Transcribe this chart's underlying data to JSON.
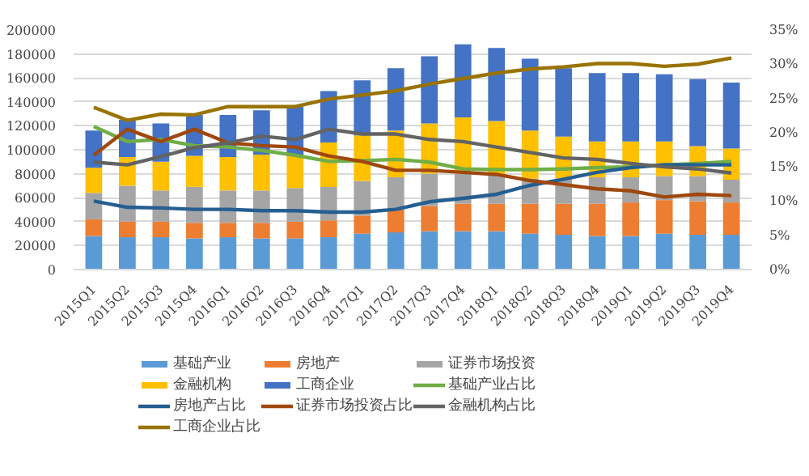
{
  "chart_data": {
    "type": "bar",
    "stacked": true,
    "grid": "y",
    "legend": "bottom",
    "line_style": "solid",
    "marker": "none",
    "categories": [
      "2015Q1",
      "2015Q2",
      "2015Q3",
      "2015Q4",
      "2016Q1",
      "2016Q2",
      "2016Q3",
      "2016Q4",
      "2017Q1",
      "2017Q2",
      "2017Q3",
      "2017Q4",
      "2018Q1",
      "2018Q2",
      "2018Q3",
      "2018Q4",
      "2019Q1",
      "2019Q2",
      "2019Q3",
      "2019Q4"
    ],
    "ylim": [
      0,
      200000
    ],
    "yticks": [
      0,
      20000,
      40000,
      60000,
      80000,
      100000,
      120000,
      140000,
      160000,
      180000,
      200000
    ],
    "y2lim": [
      0,
      35
    ],
    "y2ticks": [
      {
        "value": 0,
        "label": "0%"
      },
      {
        "value": 5,
        "label": "5%"
      },
      {
        "value": 10,
        "label": "10%"
      },
      {
        "value": 15,
        "label": "15%"
      },
      {
        "value": 20,
        "label": "20%"
      },
      {
        "value": 25,
        "label": "25%"
      },
      {
        "value": 30,
        "label": "30%"
      },
      {
        "value": 35,
        "label": "35%"
      }
    ],
    "series": [
      {
        "name": "基础产业",
        "color": "#5b9bd5",
        "values": [
          28000,
          27000,
          27000,
          26000,
          27000,
          26000,
          26000,
          27000,
          30000,
          31000,
          32000,
          32000,
          32000,
          30000,
          29000,
          28000,
          28000,
          30000,
          29000,
          29000
        ]
      },
      {
        "name": "房地产",
        "color": "#ed7d31",
        "values": [
          14000,
          13000,
          13000,
          13000,
          12000,
          13000,
          14000,
          14000,
          15000,
          19000,
          21000,
          23000,
          23000,
          25000,
          26000,
          27000,
          28000,
          28000,
          28000,
          27000
        ]
      },
      {
        "name": "证券市场投资",
        "color": "#a5a5a5",
        "values": [
          22000,
          30000,
          26000,
          30000,
          27000,
          27000,
          28000,
          28000,
          29000,
          27000,
          27000,
          25000,
          24000,
          21000,
          21000,
          22000,
          21000,
          20000,
          21000,
          19000
        ]
      },
      {
        "name": "金融机构",
        "color": "#ffc000",
        "values": [
          21000,
          24000,
          24000,
          26000,
          28000,
          30000,
          27000,
          37000,
          38000,
          39000,
          42000,
          47000,
          45000,
          40000,
          35000,
          30000,
          30000,
          29000,
          25000,
          26000
        ]
      },
      {
        "name": "工商企业",
        "color": "#4472c4",
        "values": [
          31000,
          31000,
          32000,
          34000,
          35000,
          37000,
          41000,
          43000,
          46000,
          52000,
          56000,
          61000,
          61000,
          60000,
          57000,
          57000,
          57000,
          56000,
          56000,
          55000
        ]
      },
      {
        "name": "基础产业占比",
        "color": "#70ad47",
        "type": "line",
        "axis": "y2",
        "values": [
          20.9,
          18.7,
          19.0,
          18.1,
          17.9,
          17.4,
          16.7,
          15.8,
          15.9,
          16.1,
          15.7,
          14.7,
          14.6,
          14.6,
          14.7,
          14.9,
          15.0,
          15.3,
          15.5,
          15.8
        ]
      },
      {
        "name": "房地产占比",
        "color": "#255e91",
        "type": "line",
        "axis": "y2",
        "values": [
          10.0,
          9.1,
          9.0,
          8.8,
          8.8,
          8.6,
          8.6,
          8.4,
          8.4,
          8.8,
          9.9,
          10.4,
          11.0,
          12.3,
          13.2,
          14.2,
          14.9,
          15.3,
          15.3,
          15.3
        ]
      },
      {
        "name": "证券市场投资占比",
        "color": "#9e480e",
        "type": "line",
        "axis": "y2",
        "values": [
          16.7,
          20.5,
          18.7,
          20.5,
          18.5,
          18.1,
          17.9,
          16.6,
          15.8,
          14.5,
          14.5,
          14.2,
          13.9,
          13.0,
          12.4,
          11.8,
          11.5,
          10.6,
          11.0,
          10.8
        ]
      },
      {
        "name": "金融机构占比",
        "color": "#636363",
        "type": "line",
        "axis": "y2",
        "values": [
          15.7,
          15.3,
          16.5,
          17.8,
          18.5,
          19.5,
          19.0,
          20.5,
          19.8,
          19.8,
          19.0,
          18.7,
          17.9,
          17.1,
          16.3,
          16.1,
          15.5,
          15.0,
          14.7,
          14.1
        ]
      },
      {
        "name": "工商企业占比",
        "color": "#997300",
        "type": "line",
        "axis": "y2",
        "values": [
          23.7,
          21.8,
          22.7,
          22.6,
          23.8,
          23.8,
          23.8,
          24.9,
          25.5,
          26.1,
          27.1,
          27.9,
          28.7,
          29.3,
          29.6,
          30.1,
          30.1,
          29.7,
          30.0,
          30.9
        ]
      }
    ]
  }
}
